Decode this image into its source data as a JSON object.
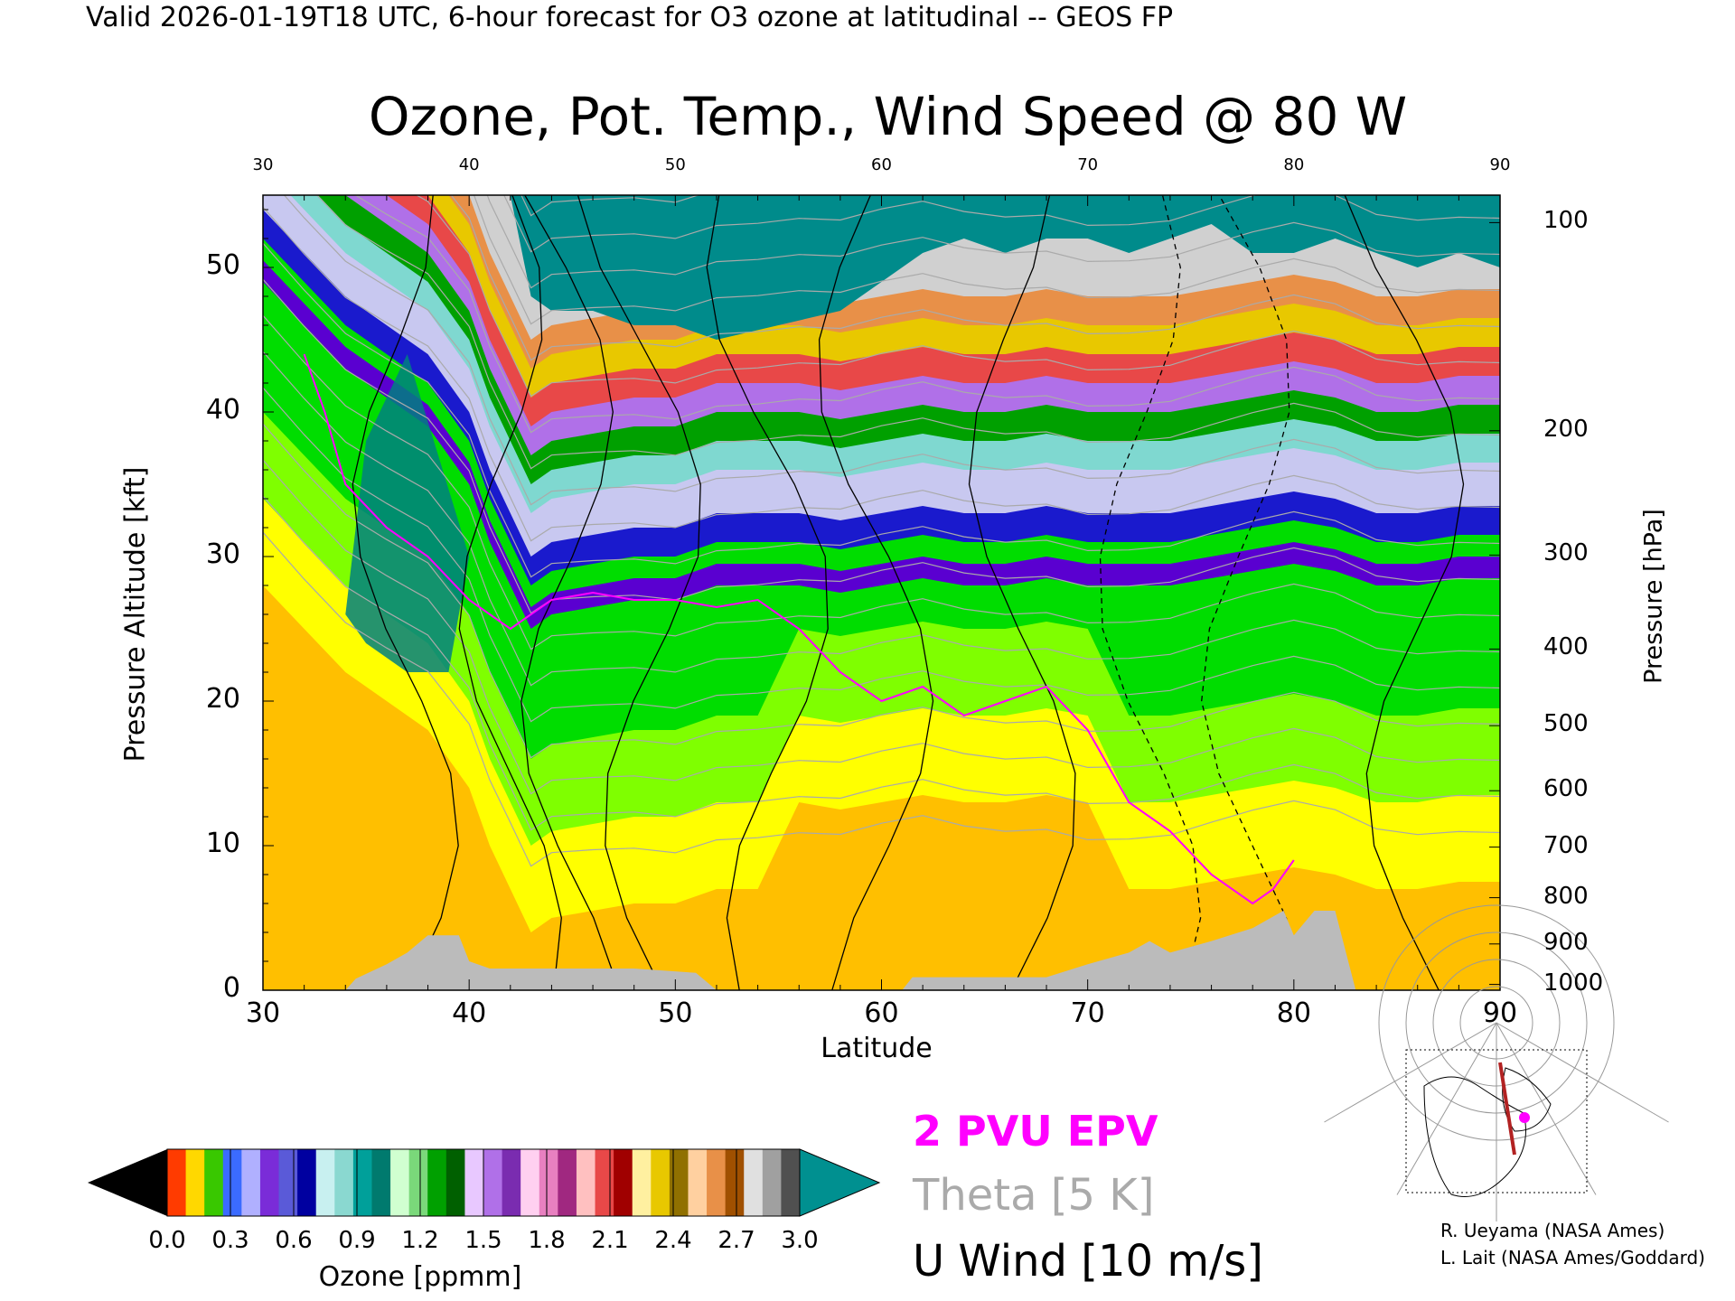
{
  "header": {
    "caption": "Valid 2026-01-19T18 UTC, 6-hour forecast for O3 ozone at latitudinal -- GEOS FP"
  },
  "chart_data": {
    "type": "heatmap",
    "title": "Ozone, Pot. Temp., Wind Speed @ 80 W",
    "xlabel": "Latitude",
    "ylabel_left": "Pressure Altitude [kft]",
    "ylabel_right": "Pressure [hPa]",
    "xlim": [
      30,
      90
    ],
    "ylim": [
      0,
      55
    ],
    "x_ticks": [
      "30",
      "40",
      "50",
      "60",
      "70",
      "80",
      "90"
    ],
    "x_ticks_top": [
      "30",
      "40",
      "50",
      "60",
      "70",
      "80",
      "90"
    ],
    "y_ticks_left": [
      "0",
      "10",
      "20",
      "30",
      "40",
      "50"
    ],
    "y_ticks_right": [
      {
        "label": "100",
        "kft": 53.1
      },
      {
        "label": "200",
        "kft": 38.7
      },
      {
        "label": "300",
        "kft": 30.1
      },
      {
        "label": "400",
        "kft": 23.6
      },
      {
        "label": "500",
        "kft": 18.3
      },
      {
        "label": "600",
        "kft": 13.8
      },
      {
        "label": "700",
        "kft": 9.9
      },
      {
        "label": "800",
        "kft": 6.4
      },
      {
        "label": "900",
        "kft": 3.2
      },
      {
        "label": "1000",
        "kft": 0.4
      }
    ],
    "tropopause_kft": [
      [
        30,
        52
      ],
      [
        32,
        49
      ],
      [
        34,
        46
      ],
      [
        36,
        44
      ],
      [
        38,
        42
      ],
      [
        40,
        38
      ],
      [
        41,
        34
      ],
      [
        42,
        31
      ],
      [
        43,
        28
      ],
      [
        44,
        29
      ],
      [
        46,
        29.5
      ],
      [
        48,
        30
      ],
      [
        50,
        30
      ],
      [
        52,
        31
      ],
      [
        54,
        31
      ],
      [
        56,
        31
      ],
      [
        58,
        30.5
      ],
      [
        60,
        31
      ],
      [
        62,
        31.5
      ],
      [
        64,
        31
      ],
      [
        66,
        31
      ],
      [
        68,
        31.5
      ],
      [
        70,
        31
      ],
      [
        72,
        31
      ],
      [
        74,
        31
      ],
      [
        76,
        31.5
      ],
      [
        78,
        32
      ],
      [
        80,
        32.5
      ],
      [
        82,
        32
      ],
      [
        84,
        31
      ],
      [
        86,
        31
      ],
      [
        88,
        31.5
      ],
      [
        90,
        31.5
      ]
    ],
    "upper_ozone_edge_kft": [
      [
        30,
        55
      ],
      [
        40,
        55
      ],
      [
        42,
        55
      ],
      [
        43,
        48
      ],
      [
        44,
        47
      ],
      [
        46,
        47
      ],
      [
        48,
        46
      ],
      [
        50,
        46
      ],
      [
        52,
        45
      ],
      [
        55,
        46
      ],
      [
        58,
        47
      ],
      [
        60,
        49
      ],
      [
        62,
        51
      ],
      [
        64,
        52
      ],
      [
        66,
        51
      ],
      [
        68,
        52
      ],
      [
        70,
        52
      ],
      [
        72,
        51
      ],
      [
        74,
        52
      ],
      [
        76,
        53
      ],
      [
        78,
        51
      ],
      [
        80,
        51
      ],
      [
        82,
        52
      ],
      [
        84,
        51
      ],
      [
        86,
        50
      ],
      [
        88,
        51
      ],
      [
        90,
        50
      ]
    ],
    "topography_kft": [
      [
        30,
        0
      ],
      [
        34,
        0
      ],
      [
        34.5,
        0.8
      ],
      [
        36,
        1.8
      ],
      [
        37,
        2.6
      ],
      [
        38,
        3.8
      ],
      [
        39.5,
        3.8
      ],
      [
        40,
        2
      ],
      [
        41,
        1.5
      ],
      [
        45,
        1.5
      ],
      [
        48,
        1.5
      ],
      [
        51,
        1.2
      ],
      [
        52,
        0
      ],
      [
        61,
        0
      ],
      [
        61.5,
        0.9
      ],
      [
        65,
        0.9
      ],
      [
        68,
        0.9
      ],
      [
        70,
        1.8
      ],
      [
        72,
        2.6
      ],
      [
        73,
        3.4
      ],
      [
        74,
        2.6
      ],
      [
        76,
        3.4
      ],
      [
        78,
        4.3
      ],
      [
        79.5,
        5.5
      ],
      [
        80,
        3.8
      ],
      [
        81,
        5.5
      ],
      [
        82,
        5.5
      ],
      [
        83,
        0
      ],
      [
        90,
        0
      ]
    ],
    "epv_2pvu_kft": [
      [
        32,
        44
      ],
      [
        33,
        40
      ],
      [
        34,
        35
      ],
      [
        36,
        32
      ],
      [
        38,
        30
      ],
      [
        40,
        27
      ],
      [
        42,
        25
      ],
      [
        44,
        27
      ],
      [
        46,
        27.5
      ],
      [
        48,
        27
      ],
      [
        50,
        27
      ],
      [
        52,
        26.5
      ],
      [
        54,
        27
      ],
      [
        56,
        25
      ],
      [
        58,
        22
      ],
      [
        60,
        20
      ],
      [
        62,
        21
      ],
      [
        64,
        19
      ],
      [
        66,
        20
      ],
      [
        68,
        21
      ],
      [
        70,
        18
      ],
      [
        72,
        13
      ],
      [
        74,
        11
      ],
      [
        76,
        8
      ],
      [
        78,
        6
      ],
      [
        79,
        7
      ],
      [
        80,
        9
      ]
    ],
    "u_wind_contours_note": "contour interval 10 m/s",
    "colorbar": {
      "label": "Ozone [ppmm]",
      "ticks": [
        "0.0",
        "0.3",
        "0.6",
        "0.9",
        "1.2",
        "1.5",
        "1.8",
        "2.1",
        "2.4",
        "2.7",
        "3.0"
      ],
      "range": [
        0,
        3
      ],
      "colors": [
        "#ff3b00",
        "#ffd800",
        "#39c800",
        "#3b6bff",
        "#b0b0ff",
        "#7a2cd8",
        "#5a5ad8",
        "#0000a0",
        "#c8f0f0",
        "#8ad8d0",
        "#00a09a",
        "#007a6e",
        "#d0ffd0",
        "#7ad87a",
        "#00a000",
        "#006000",
        "#e8c8ff",
        "#b070e8",
        "#7a2cb0",
        "#ffd0f0",
        "#e880c0",
        "#a02880",
        "#ffc0c0",
        "#e84848",
        "#a00000",
        "#fff0a0",
        "#e8c800",
        "#907000",
        "#ffd0a0",
        "#e89048",
        "#a05000",
        "#e0e0e0",
        "#a0a0a0",
        "#505050"
      ]
    },
    "colors": {
      "low_ozone": "#ffbf00",
      "mid_low": "#ffff00",
      "green_light": "#7fff00",
      "green": "#00dd00",
      "teal": "#008080",
      "blue": "#1a1acd",
      "lavender": "#c8c8f0",
      "upper_teal": "#008b8b",
      "epv": "#ff00ff",
      "theta": "#aaaaaa",
      "topography": "#bbbbbb"
    }
  },
  "legend": {
    "epv": "2 PVU EPV",
    "theta": "Theta [5 K]",
    "wind": "U Wind [10 m/s]"
  },
  "credits": {
    "line1": "R. Ueyama (NASA Ames)",
    "line2": "L. Lait (NASA Ames/Goddard)"
  },
  "inset_map": {
    "section_color": "#b22222",
    "marker_color": "#ff00ff"
  }
}
